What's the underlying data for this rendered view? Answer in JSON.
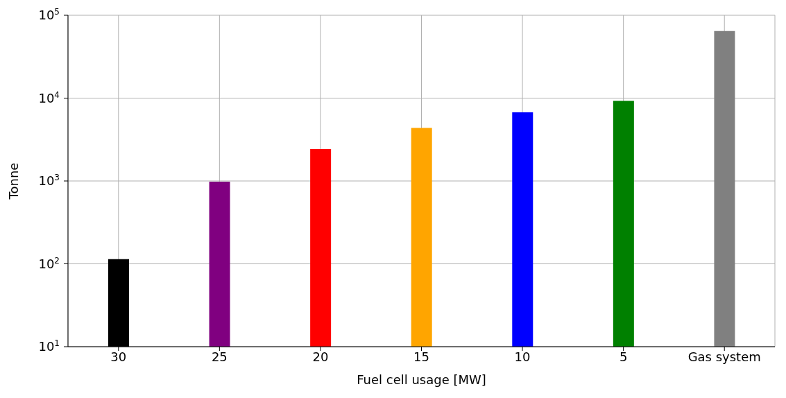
{
  "chart_data": {
    "type": "bar",
    "xlabel": "Fuel cell usage [MW]",
    "ylabel": "Tonne",
    "categories": [
      "30",
      "25",
      "20",
      "15",
      "10",
      "5",
      "Gas system"
    ],
    "values": [
      114,
      980,
      2430,
      4360,
      6730,
      9270,
      64600
    ],
    "colors": [
      "#000000",
      "#800080",
      "#ff0000",
      "#ffa500",
      "#0000ff",
      "#008000",
      "#808080"
    ],
    "log": "y",
    "ylim": [
      10,
      100000
    ],
    "yticks": [
      {
        "value": 10,
        "label": "10$^{1}$"
      },
      {
        "value": 100,
        "label": "10$^{2}$"
      },
      {
        "value": 1000,
        "label": "10$^{3}$"
      },
      {
        "value": 10000,
        "label": "10$^{4}$"
      },
      {
        "value": 100000,
        "label": "10$^{5}$"
      }
    ],
    "grid": true
  }
}
